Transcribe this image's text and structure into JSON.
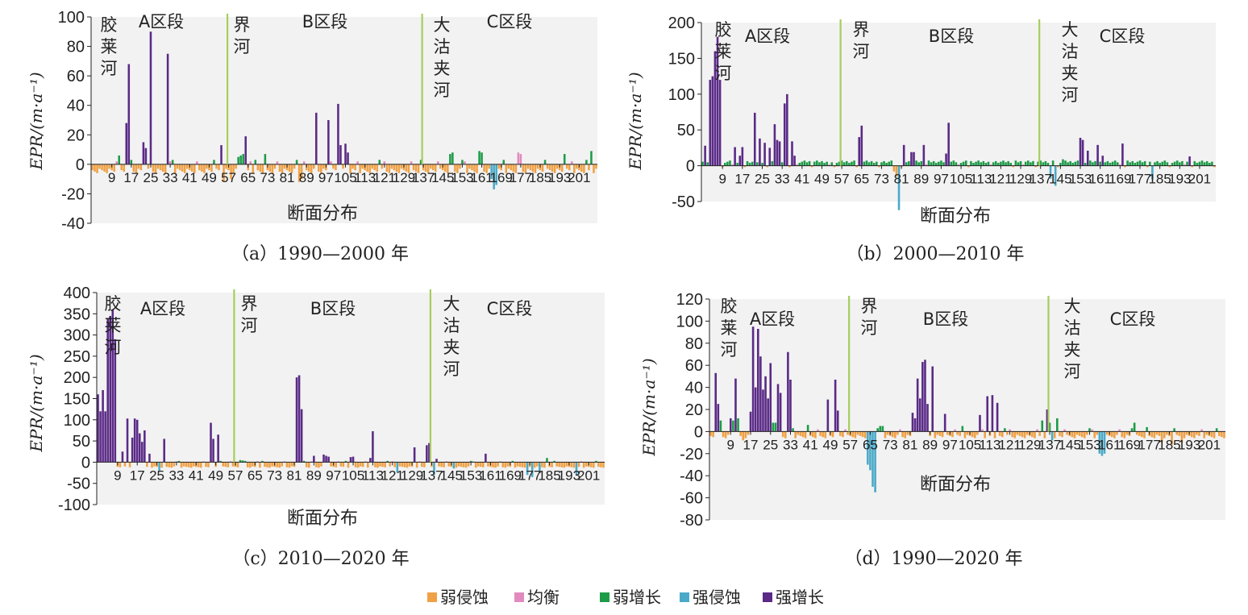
{
  "colors": {
    "weak_erosion": "#f0a145",
    "balance": "#e28ac0",
    "weak_growth": "#1e9b48",
    "strong_erosion": "#4aa9c8",
    "strong_growth": "#5a2a86",
    "divider": "#a7cd5e",
    "plot_bg": "#f2f2f2"
  },
  "legend": [
    {
      "key": "weak_erosion",
      "label": "弱侵蚀"
    },
    {
      "key": "balance",
      "label": "均衡"
    },
    {
      "key": "weak_growth",
      "label": "弱增长"
    },
    {
      "key": "strong_erosion",
      "label": "强侵蚀"
    },
    {
      "key": "strong_growth",
      "label": "强增长"
    }
  ],
  "zone_labels": {
    "a": "A区段",
    "b": "B区段",
    "c": "C区段"
  },
  "river_labels": {
    "jiaolai": "胶莱河",
    "jie": "界河",
    "dagujia": "大沽夹河"
  },
  "chart_data": [
    {
      "id": "a",
      "type": "bar",
      "caption": "（a）1990—2000 年",
      "xlabel": "断面分布",
      "ylabel": "EPR/(m·a⁻¹)",
      "ylim": [
        -40,
        100
      ],
      "yticks": [
        -40,
        -20,
        0,
        20,
        40,
        60,
        80,
        100
      ],
      "x_range": [
        1,
        208
      ],
      "xticks": [
        9,
        17,
        25,
        33,
        41,
        49,
        57,
        65,
        73,
        81,
        89,
        97,
        105,
        113,
        121,
        129,
        137,
        145,
        153,
        161,
        169,
        177,
        185,
        193,
        201
      ],
      "dividers": [
        57,
        137
      ],
      "default_negative": -3,
      "overrides": [
        [
          15,
          28,
          "strong_growth"
        ],
        [
          16,
          68,
          "strong_growth"
        ],
        [
          12,
          6,
          "weak_growth"
        ],
        [
          22,
          15,
          "strong_growth"
        ],
        [
          23,
          11,
          "strong_growth"
        ],
        [
          25,
          90,
          "strong_growth"
        ],
        [
          32,
          75,
          "strong_growth"
        ],
        [
          54,
          13,
          "strong_growth"
        ],
        [
          55,
          -12,
          "weak_erosion"
        ],
        [
          58,
          -10,
          "weak_erosion"
        ],
        [
          61,
          5,
          "weak_growth"
        ],
        [
          62,
          6,
          "weak_growth"
        ],
        [
          63,
          7,
          "weak_growth"
        ],
        [
          64,
          19,
          "strong_growth"
        ],
        [
          72,
          7,
          "weak_growth"
        ],
        [
          86,
          -12,
          "weak_erosion"
        ],
        [
          87,
          -10,
          "weak_erosion"
        ],
        [
          93,
          35,
          "strong_growth"
        ],
        [
          98,
          30,
          "strong_growth"
        ],
        [
          102,
          41,
          "strong_growth"
        ],
        [
          103,
          13,
          "strong_growth"
        ],
        [
          105,
          14,
          "strong_growth"
        ],
        [
          106,
          8,
          "strong_growth"
        ],
        [
          148,
          7,
          "weak_growth"
        ],
        [
          149,
          8,
          "weak_growth"
        ],
        [
          160,
          9,
          "weak_growth"
        ],
        [
          161,
          8,
          "weak_growth"
        ],
        [
          165,
          -10,
          "strong_erosion"
        ],
        [
          166,
          -17,
          "strong_erosion"
        ],
        [
          167,
          -14,
          "strong_erosion"
        ],
        [
          176,
          8,
          "balance"
        ],
        [
          177,
          7,
          "balance"
        ],
        [
          195,
          7,
          "weak_growth"
        ],
        [
          206,
          9,
          "weak_growth"
        ]
      ]
    },
    {
      "id": "b",
      "type": "bar",
      "caption": "（b）2000—2010 年",
      "xlabel": "断面分布",
      "ylabel": "EPR/(m·a⁻¹)",
      "ylim": [
        -50,
        200
      ],
      "yticks": [
        -50,
        0,
        50,
        100,
        150,
        200
      ],
      "x_range": [
        1,
        207
      ],
      "xticks": [
        9,
        17,
        25,
        33,
        41,
        49,
        57,
        65,
        73,
        81,
        89,
        97,
        105,
        113,
        121,
        129,
        137,
        145,
        153,
        161,
        169,
        177,
        185,
        193,
        201
      ],
      "dividers": [
        57,
        137
      ],
      "default_positive": 4,
      "overrides": [
        [
          2,
          28,
          "strong_growth"
        ],
        [
          4,
          120,
          "strong_growth"
        ],
        [
          5,
          125,
          "strong_growth"
        ],
        [
          6,
          160,
          "strong_growth"
        ],
        [
          7,
          180,
          "strong_growth"
        ],
        [
          8,
          120,
          "strong_growth"
        ],
        [
          14,
          26,
          "strong_growth"
        ],
        [
          16,
          14,
          "strong_growth"
        ],
        [
          17,
          26,
          "strong_growth"
        ],
        [
          22,
          74,
          "strong_growth"
        ],
        [
          24,
          38,
          "strong_growth"
        ],
        [
          26,
          32,
          "strong_growth"
        ],
        [
          28,
          25,
          "strong_growth"
        ],
        [
          30,
          58,
          "strong_growth"
        ],
        [
          31,
          36,
          "strong_growth"
        ],
        [
          32,
          34,
          "strong_growth"
        ],
        [
          34,
          87,
          "strong_growth"
        ],
        [
          35,
          100,
          "strong_growth"
        ],
        [
          37,
          34,
          "strong_growth"
        ],
        [
          38,
          14,
          "strong_growth"
        ],
        [
          64,
          40,
          "strong_growth"
        ],
        [
          65,
          56,
          "strong_growth"
        ],
        [
          78,
          -8,
          "weak_erosion"
        ],
        [
          79,
          -15,
          "weak_erosion"
        ],
        [
          80,
          -62,
          "strong_erosion"
        ],
        [
          82,
          29,
          "strong_growth"
        ],
        [
          85,
          19,
          "strong_growth"
        ],
        [
          86,
          19,
          "strong_growth"
        ],
        [
          90,
          29,
          "strong_growth"
        ],
        [
          99,
          17,
          "strong_growth"
        ],
        [
          100,
          60,
          "strong_growth"
        ],
        [
          141,
          -18,
          "strong_erosion"
        ],
        [
          143,
          -28,
          "strong_erosion"
        ],
        [
          146,
          9,
          "weak_growth"
        ],
        [
          153,
          39,
          "strong_growth"
        ],
        [
          154,
          36,
          "strong_growth"
        ],
        [
          156,
          21,
          "strong_growth"
        ],
        [
          160,
          29,
          "strong_growth"
        ],
        [
          162,
          14,
          "strong_growth"
        ],
        [
          170,
          31,
          "strong_growth"
        ],
        [
          182,
          -19,
          "strong_erosion"
        ],
        [
          197,
          13,
          "strong_growth"
        ]
      ]
    },
    {
      "id": "c",
      "type": "bar",
      "caption": "（c）2010—2020 年",
      "xlabel": "断面分布",
      "ylabel": "EPR/(m·a⁻¹)",
      "ylim": [
        -100,
        400
      ],
      "yticks": [
        -100,
        -50,
        0,
        50,
        100,
        150,
        200,
        250,
        300,
        350,
        400
      ],
      "x_range": [
        1,
        207
      ],
      "xticks": [
        9,
        17,
        25,
        33,
        41,
        49,
        57,
        65,
        73,
        81,
        89,
        97,
        105,
        113,
        121,
        129,
        137,
        145,
        153,
        161,
        169,
        177,
        185,
        193,
        201
      ],
      "dividers": [
        57,
        137
      ],
      "default_negative": -10,
      "overrides": [
        [
          1,
          160,
          "strong_growth"
        ],
        [
          2,
          120,
          "strong_growth"
        ],
        [
          3,
          170,
          "strong_growth"
        ],
        [
          4,
          120,
          "strong_growth"
        ],
        [
          5,
          340,
          "strong_growth"
        ],
        [
          6,
          345,
          "strong_growth"
        ],
        [
          7,
          360,
          "strong_growth"
        ],
        [
          8,
          290,
          "strong_growth"
        ],
        [
          11,
          25,
          "strong_growth"
        ],
        [
          13,
          103,
          "strong_growth"
        ],
        [
          15,
          58,
          "strong_growth"
        ],
        [
          16,
          103,
          "strong_growth"
        ],
        [
          17,
          100,
          "strong_growth"
        ],
        [
          18,
          68,
          "strong_growth"
        ],
        [
          19,
          48,
          "strong_growth"
        ],
        [
          20,
          75,
          "strong_growth"
        ],
        [
          22,
          20,
          "strong_growth"
        ],
        [
          26,
          -20,
          "strong_erosion"
        ],
        [
          28,
          55,
          "strong_growth"
        ],
        [
          47,
          93,
          "strong_growth"
        ],
        [
          48,
          55,
          "strong_growth"
        ],
        [
          50,
          65,
          "strong_growth"
        ],
        [
          59,
          5,
          "weak_growth"
        ],
        [
          60,
          4,
          "weak_growth"
        ],
        [
          61,
          3,
          "weak_growth"
        ],
        [
          82,
          200,
          "strong_growth"
        ],
        [
          83,
          205,
          "strong_growth"
        ],
        [
          84,
          125,
          "strong_growth"
        ],
        [
          89,
          15,
          "strong_growth"
        ],
        [
          93,
          18,
          "strong_growth"
        ],
        [
          94,
          15,
          "strong_growth"
        ],
        [
          95,
          13,
          "strong_growth"
        ],
        [
          104,
          12,
          "strong_growth"
        ],
        [
          105,
          13,
          "strong_growth"
        ],
        [
          112,
          10,
          "strong_growth"
        ],
        [
          113,
          73,
          "strong_growth"
        ],
        [
          123,
          -25,
          "strong_erosion"
        ],
        [
          130,
          35,
          "strong_growth"
        ],
        [
          135,
          40,
          "strong_growth"
        ],
        [
          136,
          45,
          "strong_growth"
        ],
        [
          138,
          -30,
          "strong_erosion"
        ],
        [
          139,
          8,
          "strong_growth"
        ],
        [
          146,
          -15,
          "strong_erosion"
        ],
        [
          159,
          20,
          "strong_growth"
        ],
        [
          176,
          -30,
          "strong_erosion"
        ],
        [
          178,
          -35,
          "strong_erosion"
        ],
        [
          181,
          -25,
          "strong_erosion"
        ],
        [
          184,
          10,
          "weak_growth"
        ],
        [
          196,
          -30,
          "strong_erosion"
        ]
      ]
    },
    {
      "id": "d",
      "type": "bar",
      "caption": "（d）1990—2020 年",
      "xlabel": "断面分布",
      "ylabel": "EPR/(m·a⁻¹)",
      "ylim": [
        -80,
        120
      ],
      "yticks": [
        -80,
        -60,
        -40,
        -20,
        0,
        20,
        40,
        60,
        80,
        100,
        120
      ],
      "x_range": [
        1,
        207
      ],
      "xticks": [
        9,
        17,
        25,
        33,
        41,
        49,
        57,
        65,
        73,
        81,
        89,
        97,
        105,
        113,
        121,
        129,
        137,
        145,
        153,
        161,
        169,
        177,
        185,
        193,
        201
      ],
      "dividers": [
        57,
        137
      ],
      "default_negative": -3,
      "overrides": [
        [
          3,
          53,
          "strong_growth"
        ],
        [
          4,
          25,
          "strong_growth"
        ],
        [
          5,
          10,
          "weak_growth"
        ],
        [
          9,
          12,
          "strong_growth"
        ],
        [
          10,
          10,
          "weak_growth"
        ],
        [
          11,
          48,
          "strong_growth"
        ],
        [
          12,
          12,
          "weak_growth"
        ],
        [
          14,
          -8,
          "weak_erosion"
        ],
        [
          17,
          18,
          "strong_growth"
        ],
        [
          18,
          95,
          "strong_growth"
        ],
        [
          19,
          40,
          "strong_growth"
        ],
        [
          20,
          93,
          "strong_growth"
        ],
        [
          21,
          68,
          "strong_growth"
        ],
        [
          22,
          38,
          "strong_growth"
        ],
        [
          23,
          50,
          "strong_growth"
        ],
        [
          24,
          30,
          "strong_growth"
        ],
        [
          25,
          62,
          "strong_growth"
        ],
        [
          26,
          8,
          "weak_growth"
        ],
        [
          27,
          8,
          "weak_growth"
        ],
        [
          28,
          43,
          "strong_growth"
        ],
        [
          29,
          35,
          "strong_growth"
        ],
        [
          32,
          72,
          "strong_growth"
        ],
        [
          33,
          47,
          "strong_growth"
        ],
        [
          40,
          6,
          "weak_growth"
        ],
        [
          48,
          29,
          "strong_growth"
        ],
        [
          51,
          47,
          "strong_growth"
        ],
        [
          52,
          19,
          "strong_growth"
        ],
        [
          64,
          -30,
          "strong_erosion"
        ],
        [
          65,
          -35,
          "strong_erosion"
        ],
        [
          66,
          -50,
          "strong_erosion"
        ],
        [
          67,
          -55,
          "strong_erosion"
        ],
        [
          69,
          5,
          "weak_growth"
        ],
        [
          70,
          5,
          "weak_growth"
        ],
        [
          82,
          17,
          "strong_growth"
        ],
        [
          83,
          12,
          "strong_growth"
        ],
        [
          84,
          48,
          "strong_growth"
        ],
        [
          85,
          30,
          "strong_growth"
        ],
        [
          86,
          63,
          "strong_growth"
        ],
        [
          87,
          65,
          "strong_growth"
        ],
        [
          88,
          25,
          "strong_growth"
        ],
        [
          90,
          59,
          "strong_growth"
        ],
        [
          95,
          16,
          "strong_growth"
        ],
        [
          102,
          5,
          "weak_growth"
        ],
        [
          109,
          15,
          "strong_growth"
        ],
        [
          112,
          32,
          "strong_growth"
        ],
        [
          114,
          33,
          "strong_growth"
        ],
        [
          116,
          26,
          "strong_growth"
        ],
        [
          134,
          10,
          "weak_growth"
        ],
        [
          136,
          20,
          "strong_growth"
        ],
        [
          137,
          8,
          "weak_growth"
        ],
        [
          138,
          -8,
          "strong_erosion"
        ],
        [
          140,
          12,
          "weak_growth"
        ],
        [
          157,
          -20,
          "strong_erosion"
        ],
        [
          158,
          -22,
          "strong_erosion"
        ],
        [
          159,
          -20,
          "strong_erosion"
        ],
        [
          171,
          8,
          "weak_growth"
        ],
        [
          176,
          4,
          "weak_growth"
        ],
        [
          182,
          -10,
          "weak_erosion"
        ],
        [
          186,
          -12,
          "weak_erosion"
        ],
        [
          190,
          -10,
          "weak_erosion"
        ]
      ]
    }
  ]
}
